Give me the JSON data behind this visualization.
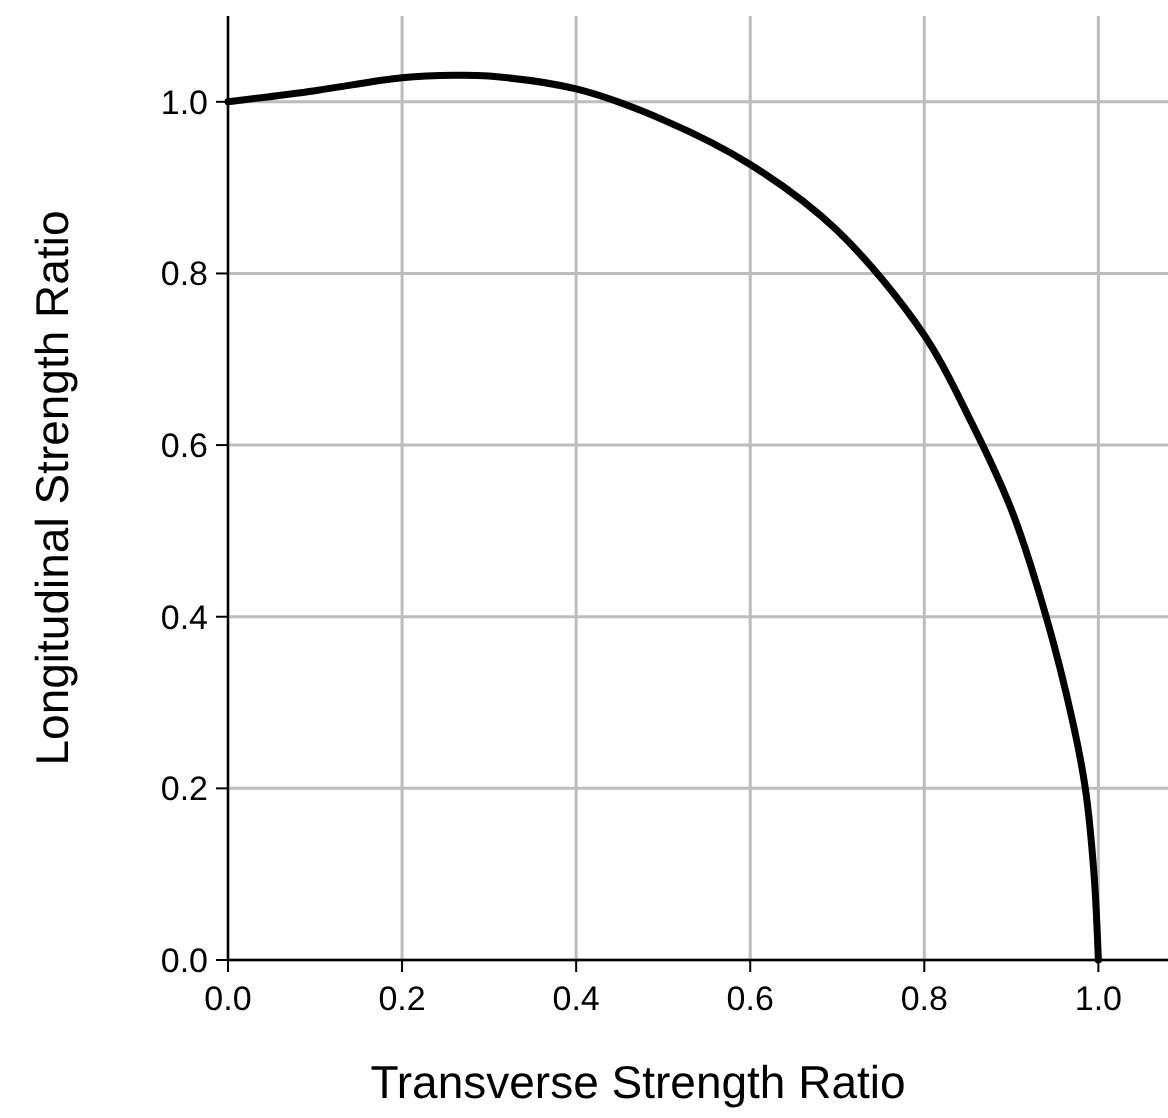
{
  "chart_data": {
    "type": "line",
    "xlabel": "Transverse Strength Ratio",
    "ylabel": "Longitudinal Strength Ratio",
    "xlim": [
      0,
      1.08
    ],
    "ylim": [
      0,
      1.1
    ],
    "xticks": [
      {
        "value": 0,
        "label": "0.0"
      },
      {
        "value": 0.2,
        "label": "0.2"
      },
      {
        "value": 0.4,
        "label": "0.4"
      },
      {
        "value": 0.6,
        "label": "0.6"
      },
      {
        "value": 0.8,
        "label": "0.8"
      },
      {
        "value": 1,
        "label": "1.0"
      }
    ],
    "yticks": [
      {
        "value": 0,
        "label": "0.0"
      },
      {
        "value": 0.2,
        "label": "0.2"
      },
      {
        "value": 0.4,
        "label": "0.4"
      },
      {
        "value": 0.6,
        "label": "0.6"
      },
      {
        "value": 0.8,
        "label": "0.8"
      },
      {
        "value": 1,
        "label": "1.0"
      }
    ],
    "grid": true,
    "marker": "none",
    "line_style": "solid",
    "series": [
      {
        "color": "#000000",
        "x": [
          0,
          0.1,
          0.2,
          0.26,
          0.3,
          0.4,
          0.5,
          0.6,
          0.7,
          0.8,
          0.85,
          0.9,
          0.94,
          0.97,
          0.985,
          0.995,
          1.0
        ],
        "values": [
          1.0,
          1.013,
          1.028,
          1.031,
          1.03,
          1.015,
          0.979,
          0.927,
          0.85,
          0.728,
          0.635,
          0.525,
          0.4,
          0.28,
          0.2,
          0.1,
          0
        ]
      }
    ]
  }
}
